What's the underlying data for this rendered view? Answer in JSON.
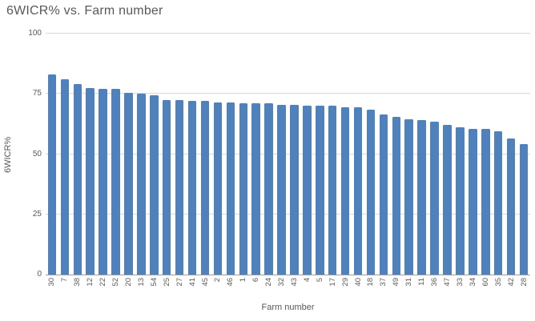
{
  "title": "6WICR% vs. Farm number",
  "chart_data": {
    "type": "bar",
    "title": "6WICR% vs. Farm number",
    "xlabel": "Farm number",
    "ylabel": "6WICR%",
    "ylim": [
      0,
      100
    ],
    "yticks": [
      0,
      25,
      50,
      75,
      100
    ],
    "grid": true,
    "legend": false,
    "bar_color": "#4f81bd",
    "gridline_color": "#d9d9d9",
    "axis_line_color": "#9d9d9d",
    "text_color": "#595959",
    "categories": [
      "30",
      "7",
      "38",
      "12",
      "22",
      "52",
      "20",
      "13",
      "54",
      "25",
      "27",
      "41",
      "45",
      "2",
      "46",
      "1",
      "6",
      "24",
      "32",
      "43",
      "4",
      "5",
      "17",
      "29",
      "40",
      "18",
      "37",
      "49",
      "31",
      "11",
      "36",
      "47",
      "33",
      "34",
      "60",
      "35",
      "42",
      "28"
    ],
    "values": [
      83,
      81,
      79,
      77.5,
      77,
      77,
      75.5,
      75,
      74.5,
      72.5,
      72.5,
      72,
      72,
      71.5,
      71.5,
      71,
      71,
      71,
      70.5,
      70.5,
      70,
      70,
      70,
      69.5,
      69.5,
      68.5,
      66.5,
      65.5,
      64.5,
      64,
      63.5,
      62,
      61,
      60.5,
      60.5,
      59.5,
      56.5,
      54
    ]
  }
}
